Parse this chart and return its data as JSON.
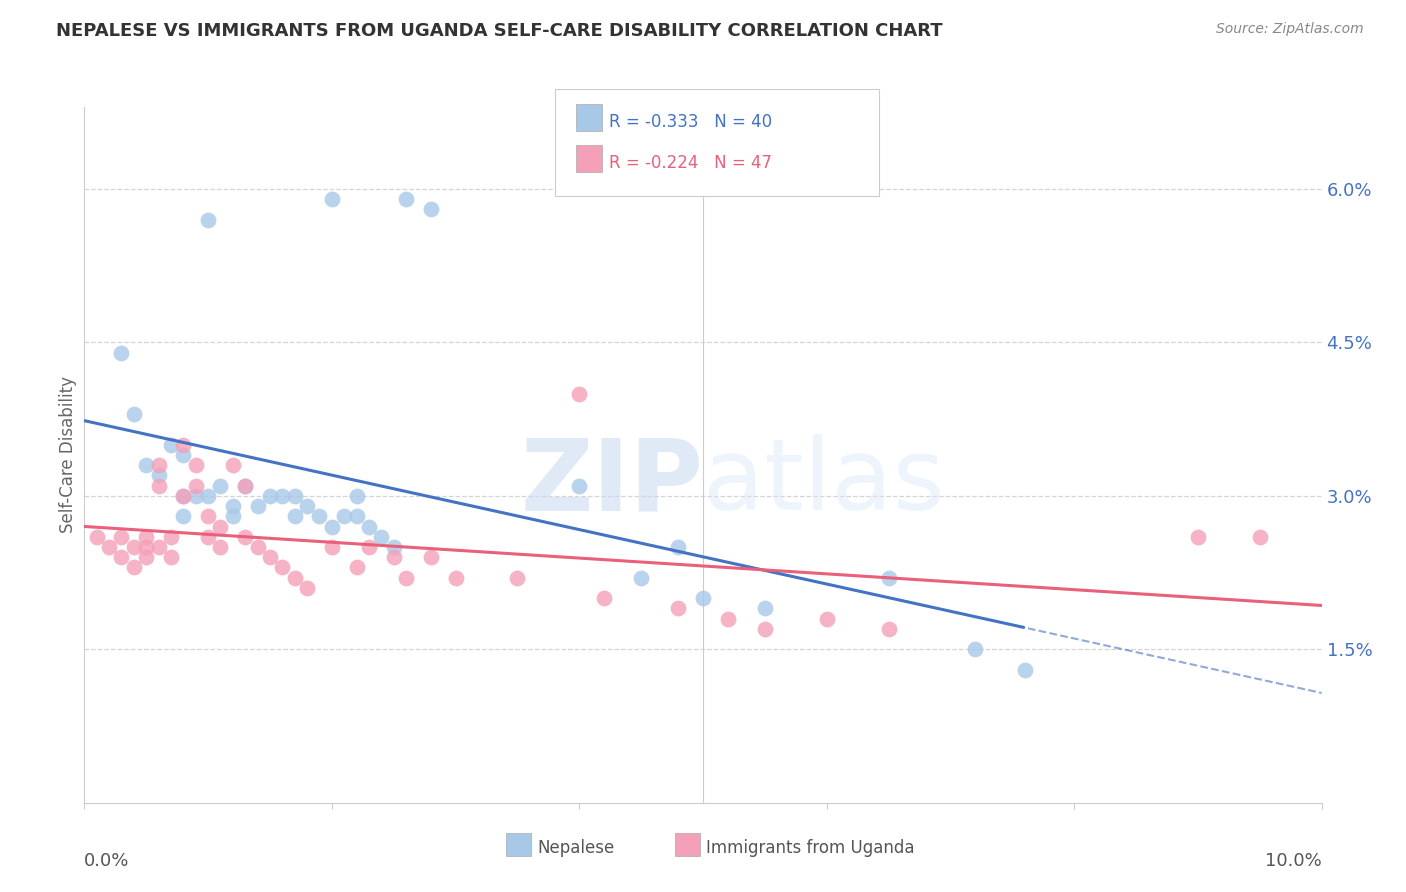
{
  "title": "NEPALESE VS IMMIGRANTS FROM UGANDA SELF-CARE DISABILITY CORRELATION CHART",
  "source": "Source: ZipAtlas.com",
  "ylabel": "Self-Care Disability",
  "y_ticks": [
    0.015,
    0.03,
    0.045,
    0.06
  ],
  "y_tick_labels": [
    "1.5%",
    "3.0%",
    "4.5%",
    "6.0%"
  ],
  "x_min": 0.0,
  "x_max": 0.1,
  "y_min": 0.0,
  "y_max": 0.068,
  "nepalese_x": [
    0.01,
    0.02,
    0.026,
    0.028,
    0.003,
    0.004,
    0.005,
    0.006,
    0.007,
    0.008,
    0.008,
    0.008,
    0.009,
    0.01,
    0.011,
    0.012,
    0.012,
    0.013,
    0.014,
    0.015,
    0.016,
    0.017,
    0.017,
    0.018,
    0.019,
    0.02,
    0.021,
    0.022,
    0.022,
    0.023,
    0.024,
    0.025,
    0.04,
    0.045,
    0.048,
    0.05,
    0.055,
    0.065,
    0.072,
    0.076
  ],
  "nepalese_y": [
    0.057,
    0.059,
    0.059,
    0.058,
    0.044,
    0.038,
    0.033,
    0.032,
    0.035,
    0.034,
    0.03,
    0.028,
    0.03,
    0.03,
    0.031,
    0.029,
    0.028,
    0.031,
    0.029,
    0.03,
    0.03,
    0.03,
    0.028,
    0.029,
    0.028,
    0.027,
    0.028,
    0.03,
    0.028,
    0.027,
    0.026,
    0.025,
    0.031,
    0.022,
    0.025,
    0.02,
    0.019,
    0.022,
    0.015,
    0.013
  ],
  "uganda_x": [
    0.001,
    0.002,
    0.003,
    0.003,
    0.004,
    0.004,
    0.005,
    0.005,
    0.005,
    0.006,
    0.006,
    0.006,
    0.007,
    0.007,
    0.008,
    0.008,
    0.009,
    0.009,
    0.01,
    0.01,
    0.011,
    0.011,
    0.012,
    0.013,
    0.013,
    0.014,
    0.015,
    0.016,
    0.017,
    0.018,
    0.02,
    0.022,
    0.023,
    0.025,
    0.026,
    0.028,
    0.03,
    0.035,
    0.04,
    0.042,
    0.048,
    0.052,
    0.055,
    0.06,
    0.065,
    0.09,
    0.095
  ],
  "uganda_y": [
    0.026,
    0.025,
    0.026,
    0.024,
    0.025,
    0.023,
    0.026,
    0.025,
    0.024,
    0.033,
    0.031,
    0.025,
    0.026,
    0.024,
    0.035,
    0.03,
    0.033,
    0.031,
    0.028,
    0.026,
    0.027,
    0.025,
    0.033,
    0.031,
    0.026,
    0.025,
    0.024,
    0.023,
    0.022,
    0.021,
    0.025,
    0.023,
    0.025,
    0.024,
    0.022,
    0.024,
    0.022,
    0.022,
    0.04,
    0.02,
    0.019,
    0.018,
    0.017,
    0.018,
    0.017,
    0.026,
    0.026
  ],
  "blue_line_color": "#4472c4",
  "pink_line_color": "#e8607a",
  "scatter_blue": "#a8c8e8",
  "scatter_pink": "#f4a0b8",
  "grid_color": "#d0d0d0",
  "background_color": "#ffffff",
  "tick_label_color": "#4472c4",
  "title_color": "#333333",
  "source_color": "#888888",
  "ylabel_color": "#666666"
}
